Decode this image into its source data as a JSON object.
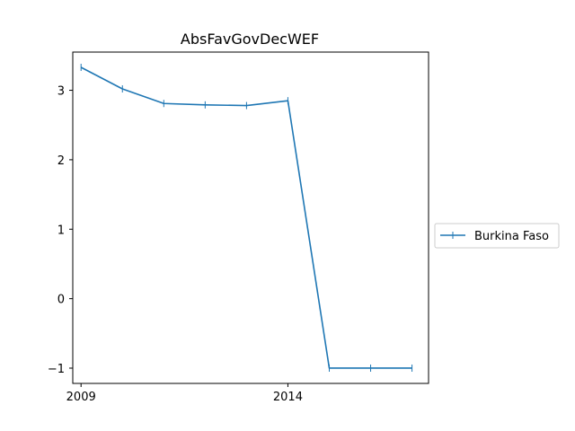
{
  "chart_data": {
    "type": "line",
    "title": "AbsFavGovDecWEF",
    "xlabel": "",
    "ylabel": "",
    "x": [
      2009,
      2010,
      2011,
      2012,
      2013,
      2014,
      2015,
      2016,
      2017
    ],
    "series": [
      {
        "name": "Burkina Faso",
        "values": [
          3.33,
          3.02,
          2.81,
          2.79,
          2.78,
          2.85,
          -1.0,
          -1.0,
          -1.0
        ],
        "color": "#1f77b4",
        "marker": "|"
      }
    ],
    "xticks": [
      2009,
      2014
    ],
    "xtick_labels": [
      "2009",
      "2014"
    ],
    "yticks": [
      -1,
      0,
      1,
      2,
      3
    ],
    "ytick_labels": [
      "−1",
      "0",
      "1",
      "2",
      "3"
    ],
    "xlim": [
      2008.8,
      2017.4
    ],
    "ylim": [
      -1.22,
      3.55
    ],
    "legend_position": "right-outside",
    "grid": false
  }
}
